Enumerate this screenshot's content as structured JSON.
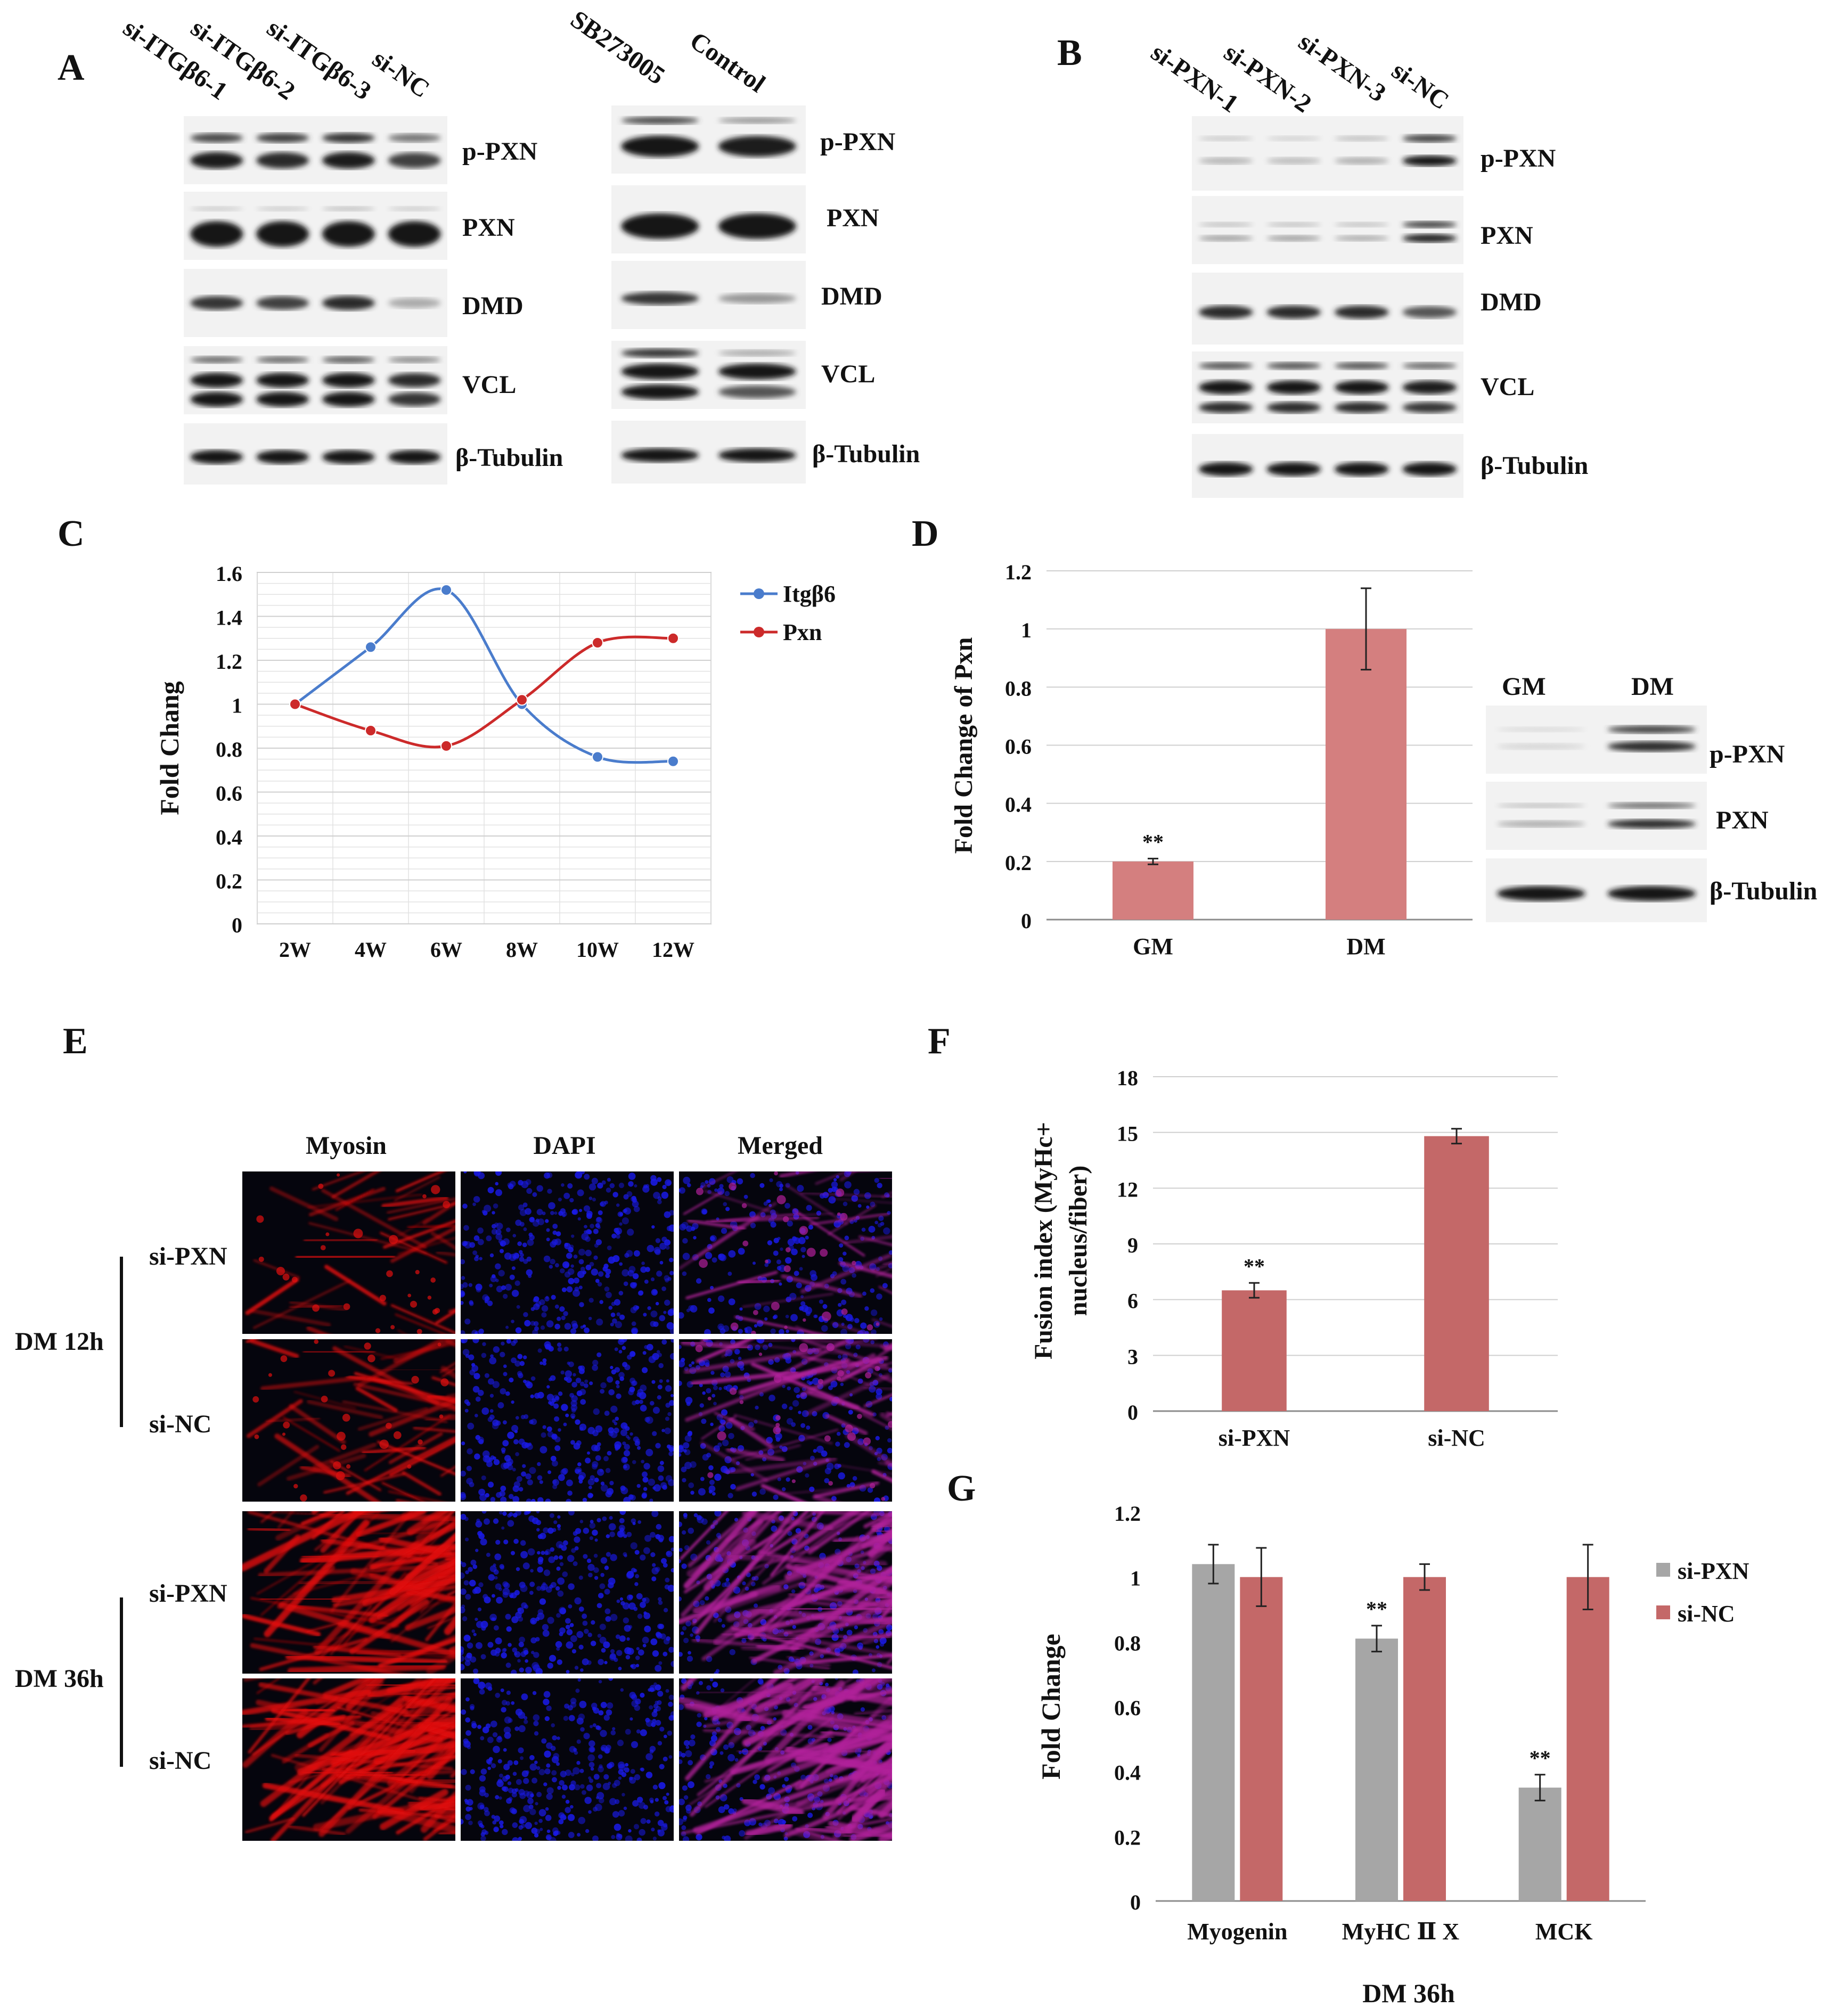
{
  "panel_letters": [
    "A",
    "B",
    "C",
    "D",
    "E",
    "F",
    "G"
  ],
  "panelA": {
    "left_lanes": [
      "si-ITGβ6-1",
      "si-ITGβ6-2",
      "si-ITGβ6-3",
      "si-NC"
    ],
    "right_lanes": [
      "SB273005",
      "Control"
    ],
    "row_labels": [
      "p-PXN",
      "PXN",
      "DMD",
      "VCL",
      "β-Tubulin"
    ]
  },
  "panelB": {
    "lanes": [
      "si-PXN-1",
      "si-PXN-2",
      "si-PXN-3",
      "si-NC"
    ],
    "row_labels": [
      "p-PXN",
      "PXN",
      "DMD",
      "VCL",
      "β-Tubulin"
    ]
  },
  "panelD_blot": {
    "lanes": [
      "GM",
      "DM"
    ],
    "row_labels": [
      "p-PXN",
      "PXN",
      "β-Tubulin"
    ]
  },
  "panelE": {
    "columns": [
      "Myosin",
      "DAPI",
      "Merged"
    ],
    "row_labels": [
      "si-PXN",
      "si-NC",
      "si-PXN",
      "si-NC"
    ],
    "groups": [
      "DM 12h",
      "DM 36h"
    ],
    "colors": {
      "myosin": "#e01010",
      "dapi": "#1a1ae6",
      "merged": "#b0209a"
    }
  },
  "chart_data": [
    {
      "panel": "C",
      "type": "line",
      "categories": [
        "2W",
        "4W",
        "6W",
        "8W",
        "10W",
        "12W"
      ],
      "series": [
        {
          "name": "Itgβ6",
          "color": "#4a7ccc",
          "values": [
            1.0,
            1.26,
            1.52,
            1.0,
            0.76,
            0.74
          ]
        },
        {
          "name": "Pxn",
          "color": "#cc2a2a",
          "values": [
            1.0,
            0.88,
            0.81,
            1.02,
            1.28,
            1.3
          ]
        }
      ],
      "ylabel": "Fold Chang",
      "ylim": [
        0,
        1.6
      ],
      "yticks": [
        "0",
        "0.2",
        "0.4",
        "0.6",
        "0.8",
        "1",
        "1.2",
        "1.4",
        "1.6"
      ],
      "grid": true,
      "legend": "right"
    },
    {
      "panel": "D",
      "type": "bar",
      "categories": [
        "GM",
        "DM"
      ],
      "values": [
        0.2,
        1.0
      ],
      "errors": [
        0.01,
        0.14
      ],
      "significance": [
        "**",
        ""
      ],
      "color": "#d47f7f",
      "ylabel": "Fold Change of Pxn",
      "ylim": [
        0,
        1.2
      ],
      "yticks": [
        "0",
        "0.2",
        "0.4",
        "0.6",
        "0.8",
        "1",
        "1.2"
      ],
      "grid": true
    },
    {
      "panel": "F",
      "type": "bar",
      "categories": [
        "si-PXN",
        "si-NC"
      ],
      "values": [
        6.5,
        14.8
      ],
      "errors": [
        0.4,
        0.4
      ],
      "significance": [
        "**",
        ""
      ],
      "color": "#c46868",
      "ylabel_line1": "Fusion index (MyHc+",
      "ylabel_line2": "nucleus/fiber)",
      "ylim": [
        0,
        18
      ],
      "yticks": [
        "0",
        "3",
        "6",
        "9",
        "12",
        "15",
        "18"
      ],
      "grid": true
    },
    {
      "panel": "G",
      "type": "bar",
      "categories": [
        "Myogenin",
        "MyHC Ⅱ X",
        "MCK"
      ],
      "series": [
        {
          "name": "si-PXN",
          "color": "#a6a6a6",
          "values": [
            1.04,
            0.81,
            0.35
          ],
          "errors": [
            0.06,
            0.04,
            0.04
          ],
          "significance": [
            "",
            "**",
            "**"
          ]
        },
        {
          "name": "si-NC",
          "color": "#c46868",
          "values": [
            1.0,
            1.0,
            1.0
          ],
          "errors": [
            0.09,
            0.04,
            0.1
          ],
          "significance": [
            "",
            "",
            ""
          ]
        }
      ],
      "xlabel": "DM 36h",
      "ylabel": "Fold Change",
      "ylim": [
        0,
        1.2
      ],
      "yticks": [
        "0",
        "0.2",
        "0.4",
        "0.6",
        "0.8",
        "1",
        "1.2"
      ],
      "grid": false,
      "legend": "right"
    }
  ]
}
